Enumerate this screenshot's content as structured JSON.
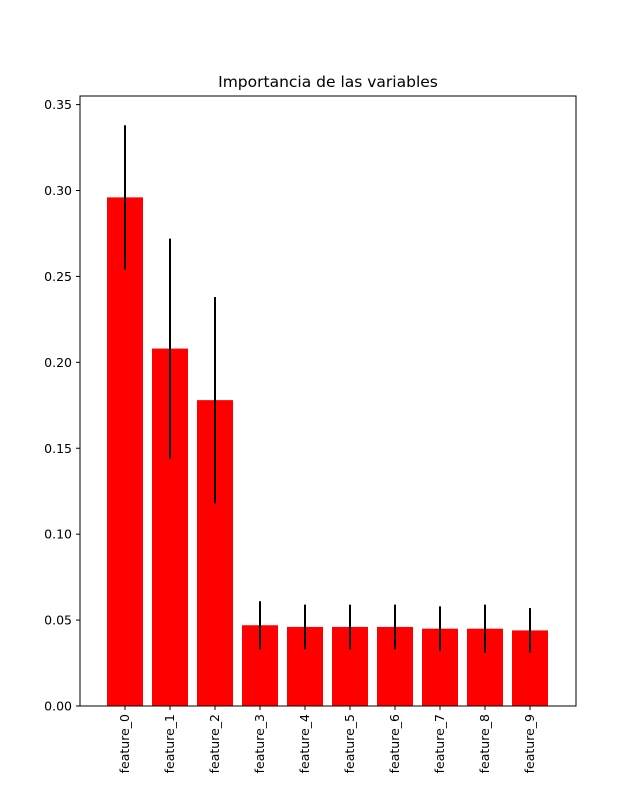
{
  "chart_data": {
    "type": "bar",
    "title": "Importancia de las variables",
    "xlabel": "",
    "ylabel": "",
    "categories": [
      "feature_0",
      "feature_1",
      "feature_2",
      "feature_3",
      "feature_4",
      "feature_5",
      "feature_6",
      "feature_7",
      "feature_8",
      "feature_9"
    ],
    "values": [
      0.296,
      0.208,
      0.178,
      0.047,
      0.046,
      0.046,
      0.046,
      0.045,
      0.045,
      0.044
    ],
    "errors": [
      0.042,
      0.064,
      0.06,
      0.014,
      0.013,
      0.013,
      0.013,
      0.013,
      0.014,
      0.013
    ],
    "ylim": [
      0.0,
      0.355
    ],
    "yticks": [
      "0.00",
      "0.05",
      "0.10",
      "0.15",
      "0.20",
      "0.25",
      "0.30",
      "0.35"
    ],
    "bar_color": "#ff0000",
    "error_color": "#000000",
    "grid": false,
    "legend": "none"
  }
}
